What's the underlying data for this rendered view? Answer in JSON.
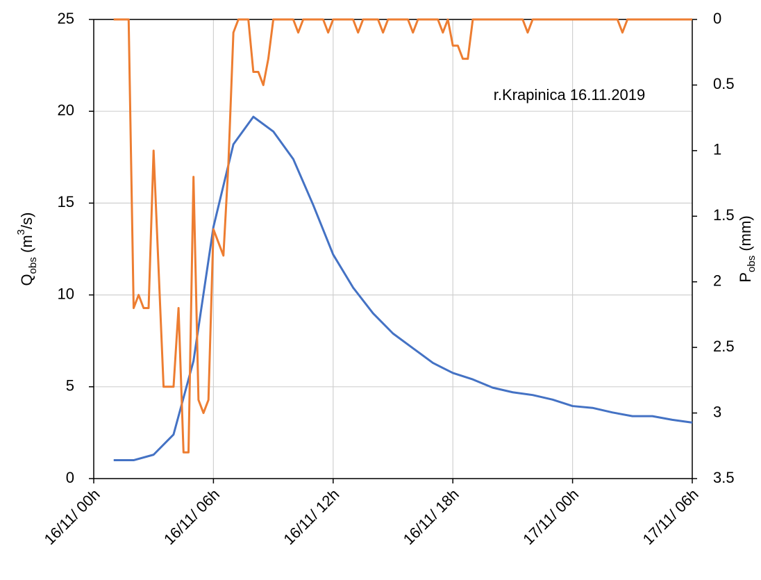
{
  "chart_data": {
    "type": "line",
    "annotation": "r.Krapinica 16.11.2019",
    "ylabel_parts": [
      "Q",
      "obs",
      " (m",
      "3",
      "/s)"
    ],
    "y2label_parts": [
      "P",
      "obs",
      " (mm)"
    ],
    "xlim": [
      0,
      30
    ],
    "xticks": [
      {
        "value": 0,
        "label": "16/11/ 00h"
      },
      {
        "value": 6,
        "label": "16/11/ 06h"
      },
      {
        "value": 12,
        "label": "16/11/ 12h"
      },
      {
        "value": 18,
        "label": "16/11/ 18h"
      },
      {
        "value": 24,
        "label": "17/11/ 00h"
      },
      {
        "value": 30,
        "label": "17/11/ 06h"
      }
    ],
    "ylim": [
      0,
      25
    ],
    "yticks": [
      0,
      5,
      10,
      15,
      20,
      25
    ],
    "y2lim": [
      0,
      3.5
    ],
    "y2_inverted": true,
    "y2ticks": [
      0,
      0.5,
      1,
      1.5,
      2,
      2.5,
      3,
      3.5
    ],
    "grid": true,
    "series": [
      {
        "color": "#4472c4",
        "x": [
          1,
          2,
          3,
          4,
          5,
          6,
          7,
          8,
          9,
          10,
          11,
          12,
          13,
          14,
          15,
          16,
          17,
          18,
          19,
          20,
          21,
          22,
          23,
          24,
          25,
          26,
          27,
          28,
          29,
          30
        ],
        "values": [
          1.0,
          1.0,
          1.3,
          2.4,
          6.4,
          13.7,
          18.2,
          19.7,
          18.9,
          17.4,
          14.9,
          12.2,
          10.4,
          9.0,
          7.9,
          7.1,
          6.3,
          5.75,
          5.4,
          4.95,
          4.7,
          4.55,
          4.3,
          3.95,
          3.85,
          3.6,
          3.4,
          3.4,
          3.2,
          3.05
        ]
      },
      {
        "color": "#ed7d31",
        "axis": "y2",
        "x": [
          1.0,
          1.75,
          2.0,
          2.25,
          2.5,
          2.75,
          3.0,
          3.5,
          4.0,
          4.25,
          4.5,
          4.75,
          5.0,
          5.25,
          5.5,
          5.75,
          6.0,
          6.5,
          6.75,
          7.0,
          7.25,
          7.75,
          8.0,
          8.25,
          8.5,
          8.75,
          9.0,
          10.0,
          10.25,
          10.5,
          11.5,
          11.75,
          12.0,
          13.0,
          13.25,
          13.5,
          14.25,
          14.5,
          14.75,
          15.75,
          16.0,
          16.25,
          17.25,
          17.5,
          17.75,
          18.0,
          18.25,
          18.5,
          18.75,
          19.0,
          21.5,
          21.75,
          22.0,
          26.25,
          26.5,
          26.75,
          30.0
        ],
        "values": [
          0,
          0,
          2.2,
          2.1,
          2.2,
          2.2,
          1.0,
          2.8,
          2.8,
          2.2,
          3.3,
          3.3,
          1.2,
          2.9,
          3.0,
          2.9,
          1.6,
          1.8,
          1.1,
          0.1,
          0,
          0,
          0.4,
          0.4,
          0.5,
          0.3,
          0,
          0,
          0.1,
          0,
          0,
          0.1,
          0,
          0,
          0.1,
          0,
          0,
          0.1,
          0,
          0,
          0.1,
          0,
          0,
          0.1,
          0,
          0.2,
          0.2,
          0.3,
          0.3,
          0,
          0,
          0.1,
          0,
          0,
          0.1,
          0,
          0
        ]
      }
    ]
  }
}
